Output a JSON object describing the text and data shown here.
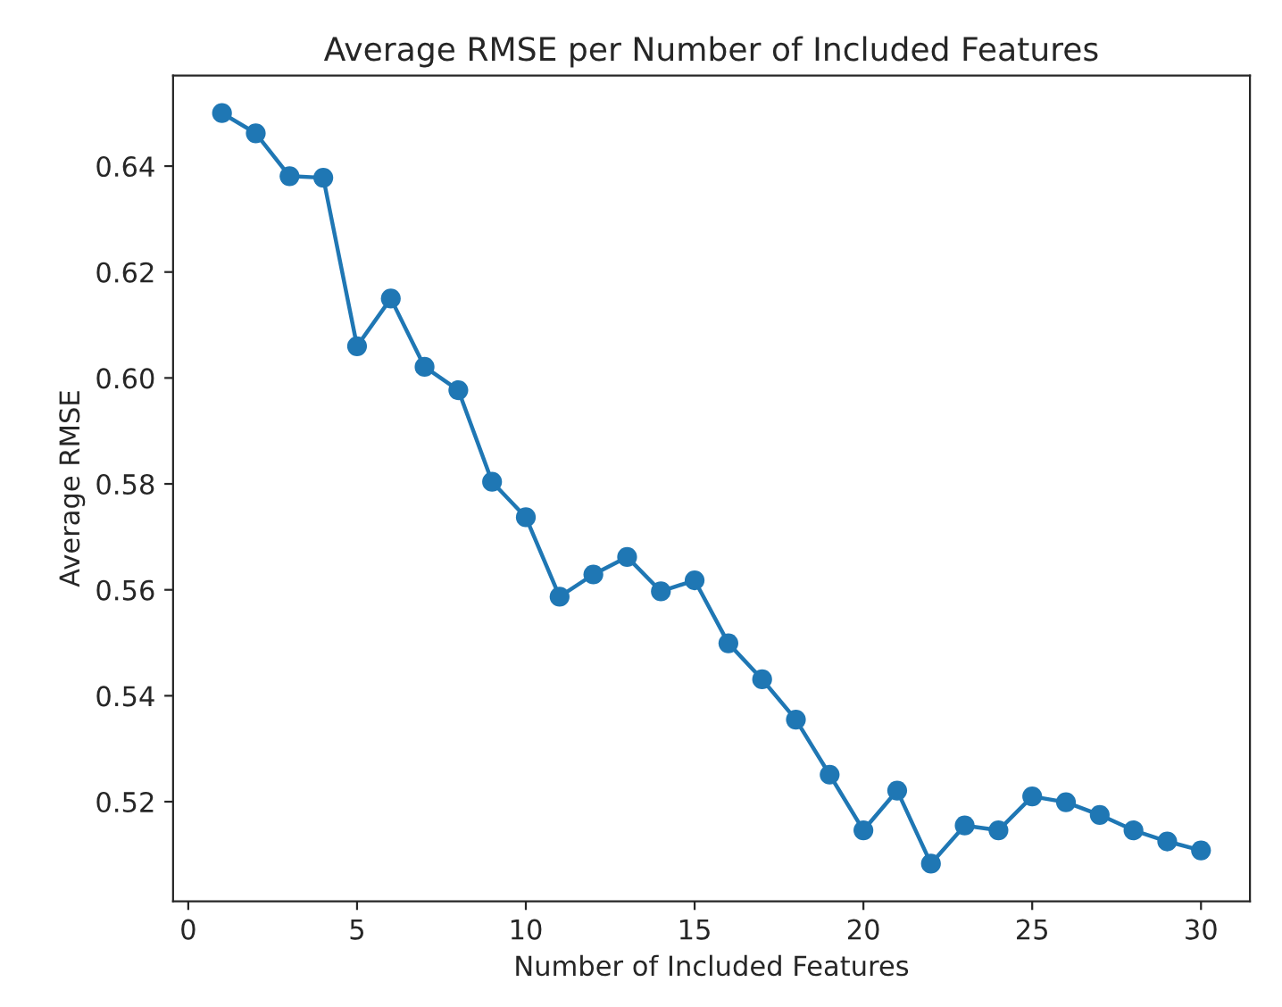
{
  "chart_data": {
    "type": "line",
    "title": "Average RMSE per Number of Included Features",
    "xlabel": "Number of Included Features",
    "ylabel": "Average RMSE",
    "x": [
      1,
      2,
      3,
      4,
      5,
      6,
      7,
      8,
      9,
      10,
      11,
      12,
      13,
      14,
      15,
      16,
      17,
      18,
      19,
      20,
      21,
      22,
      23,
      24,
      25,
      26,
      27,
      28,
      29,
      30
    ],
    "series": [
      {
        "color": "#1f77b4",
        "values": [
          0.65,
          0.6462,
          0.6381,
          0.6378,
          0.606,
          0.615,
          0.6021,
          0.5977,
          0.5804,
          0.5737,
          0.5587,
          0.5629,
          0.5662,
          0.5597,
          0.5618,
          0.5499,
          0.5431,
          0.5355,
          0.5251,
          0.5146,
          0.5221,
          0.5083,
          0.5155,
          0.5146,
          0.521,
          0.5199,
          0.5175,
          0.5146,
          0.5125,
          0.5108
        ]
      }
    ],
    "xlim": [
      -0.45,
      31.45
    ],
    "xticks": [
      0,
      5,
      10,
      15,
      20,
      25,
      30
    ],
    "ylim": [
      0.5012,
      0.6571
    ],
    "yticks": [
      {
        "value": 0.52,
        "label": "0.52"
      },
      {
        "value": 0.54,
        "label": "0.54"
      },
      {
        "value": 0.56,
        "label": "0.56"
      },
      {
        "value": 0.58,
        "label": "0.58"
      },
      {
        "value": 0.6,
        "label": "0.60"
      },
      {
        "value": 0.62,
        "label": "0.62"
      },
      {
        "value": 0.64,
        "label": "0.64"
      }
    ],
    "marker": "circle",
    "line_style": "solid",
    "grid": false
  }
}
